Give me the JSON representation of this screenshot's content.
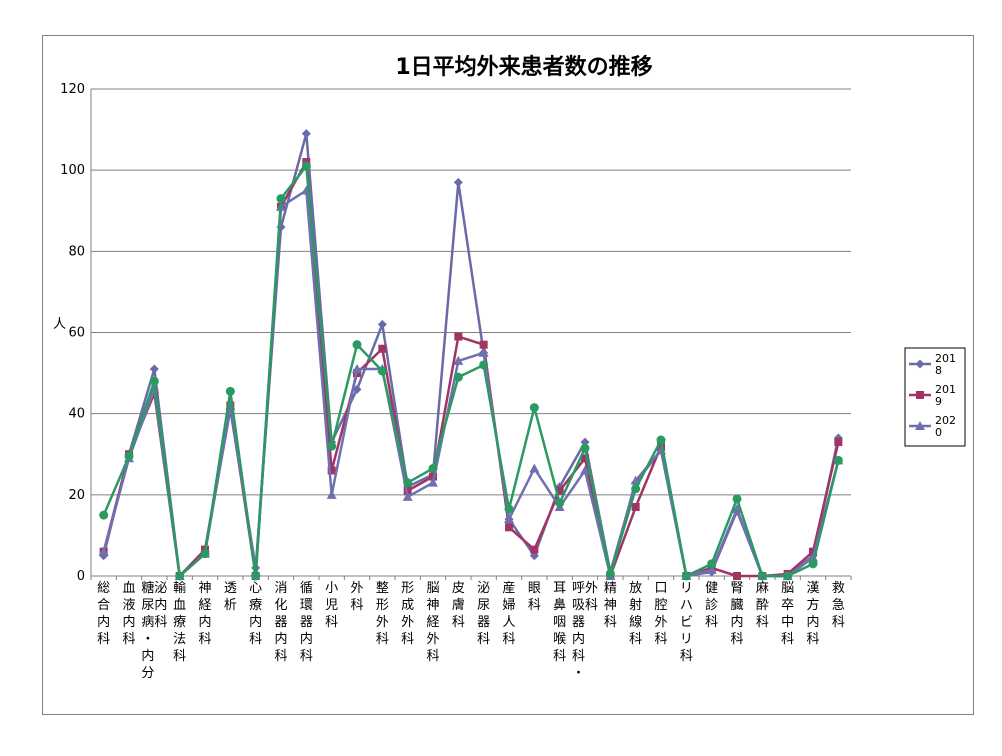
{
  "chart_data": {
    "type": "line",
    "title": "1日平均外来患者数の推移",
    "ylabel": "人",
    "xlabel": "",
    "ylim": [
      0,
      120
    ],
    "yticks": [
      0,
      20,
      40,
      60,
      80,
      100,
      120
    ],
    "grid": true,
    "legend": "right",
    "categories": [
      "総合内科",
      "血液内科",
      "糖尿病・内分泌内科",
      "輸血療法科",
      "神経内科",
      "透析",
      "心療内科",
      "消化器内科",
      "循環器内科",
      "小児科",
      "外科",
      "整形外科",
      "形成外科",
      "脳神経外科",
      "皮膚科",
      "泌尿器科",
      "産婦人科",
      "眼科",
      "耳鼻咽喉科",
      "呼吸器内科・外科",
      "精神科",
      "放射線科",
      "口腔外科",
      "リハビリ科",
      "健診科",
      "腎臓内科",
      "麻酔科",
      "脳卒中科",
      "漢方内科",
      "救急科"
    ],
    "series": [
      {
        "name": "2018",
        "legend_lines": [
          "201",
          "8"
        ],
        "color": "#6a6aa8",
        "marker": "diamond",
        "values": [
          5,
          30,
          51,
          0,
          6,
          41,
          2,
          86,
          109,
          33,
          46,
          62,
          22,
          25,
          97,
          55,
          14,
          5,
          22,
          33,
          1,
          23,
          31,
          0,
          1,
          16,
          0,
          0,
          5,
          34
        ]
      },
      {
        "name": "2019",
        "legend_lines": [
          "201",
          "9"
        ],
        "color": "#a03464",
        "marker": "square",
        "values": [
          6,
          30,
          45,
          0,
          6.5,
          42,
          0,
          91,
          102,
          26,
          50,
          56,
          21,
          24.5,
          59,
          57,
          12,
          6.5,
          21,
          29,
          0,
          17,
          32,
          0,
          2,
          0,
          0,
          0.5,
          6,
          33
        ]
      },
      {
        "name": "2020",
        "legend_lines": [
          "202",
          "0"
        ],
        "color": "#7070b0",
        "marker": "triangle",
        "values": [
          6,
          29,
          46,
          0,
          5.5,
          42,
          1,
          91,
          95,
          20,
          51,
          51,
          19.5,
          23,
          53,
          55,
          14,
          26.5,
          17,
          26,
          0,
          23.5,
          31,
          0,
          1.5,
          16.5,
          0,
          0,
          4.5,
          28.5
        ]
      },
      {
        "name": "",
        "legend_lines": [],
        "color": "#2a9a62",
        "marker": "circle",
        "values": [
          15,
          29.5,
          48,
          0,
          5.5,
          45.5,
          0,
          93,
          101,
          32,
          57,
          50.5,
          23,
          26.5,
          49,
          52,
          16.5,
          41.5,
          18,
          31.5,
          0.5,
          21.5,
          33.5,
          0,
          3,
          19,
          0,
          0,
          3,
          28.5
        ]
      }
    ]
  }
}
